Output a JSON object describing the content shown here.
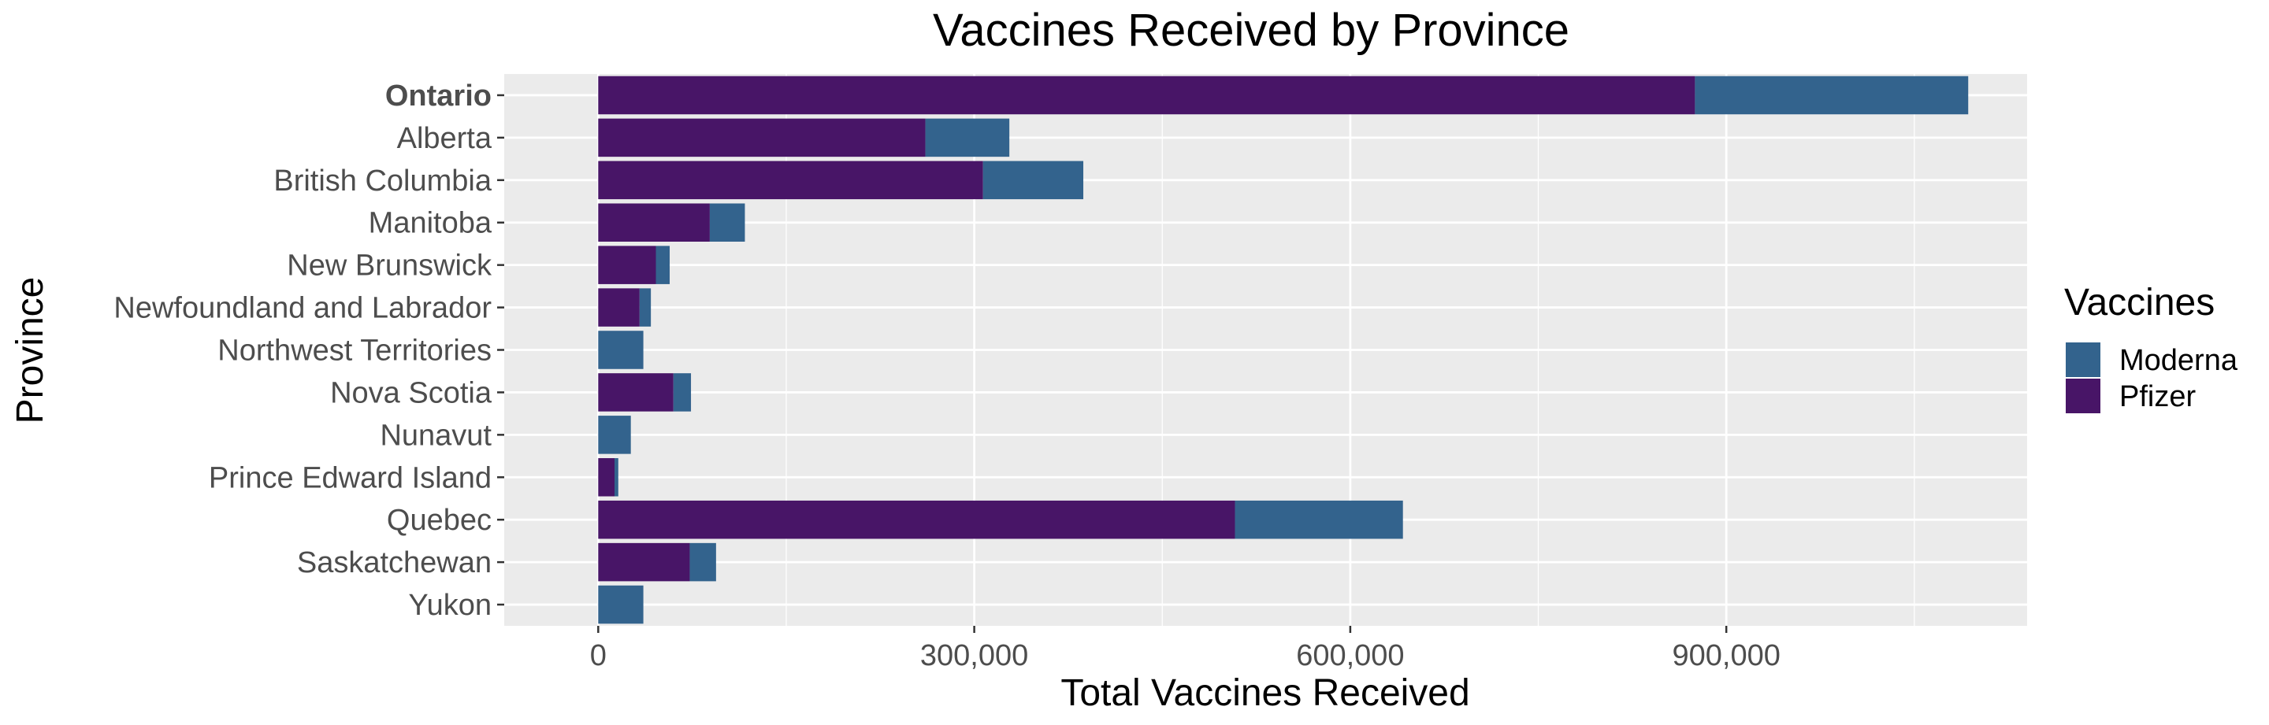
{
  "chart_data": {
    "type": "bar",
    "orientation": "horizontal",
    "stacked": true,
    "title": "Vaccines Received by Province",
    "xlabel": "Total Vaccines Received",
    "ylabel": "Province",
    "xlim": [
      -75000,
      1140000
    ],
    "xticks": [
      0,
      300000,
      600000,
      900000
    ],
    "xtick_labels": [
      "0",
      "300,000",
      "600,000",
      "900,000"
    ],
    "grid": true,
    "categories": [
      "Ontario",
      "Alberta",
      "British Columbia",
      "Manitoba",
      "New Brunswick",
      "Newfoundland and  Labrador",
      "Northwest  Territories",
      "Nova Scotia",
      "Nunavut",
      "Prince Edward  Island",
      "Quebec",
      "Saskatchewan",
      "Yukon"
    ],
    "highlighted_category": "Ontario",
    "series": [
      {
        "name": "Pfizer",
        "color": "#481567",
        "values": [
          875000,
          261000,
          307000,
          89000,
          46000,
          33000,
          0,
          60000,
          0,
          13000,
          508000,
          73000,
          0
        ]
      },
      {
        "name": "Moderna",
        "color": "#33638D",
        "values": [
          218000,
          67000,
          80000,
          28000,
          11000,
          9000,
          36000,
          14000,
          26000,
          3000,
          134000,
          21000,
          36000
        ]
      }
    ],
    "legend": {
      "title": "Vaccines",
      "position": "right",
      "entries": [
        {
          "name": "Moderna",
          "color": "#33638D"
        },
        {
          "name": "Pfizer",
          "color": "#481567"
        }
      ]
    }
  }
}
